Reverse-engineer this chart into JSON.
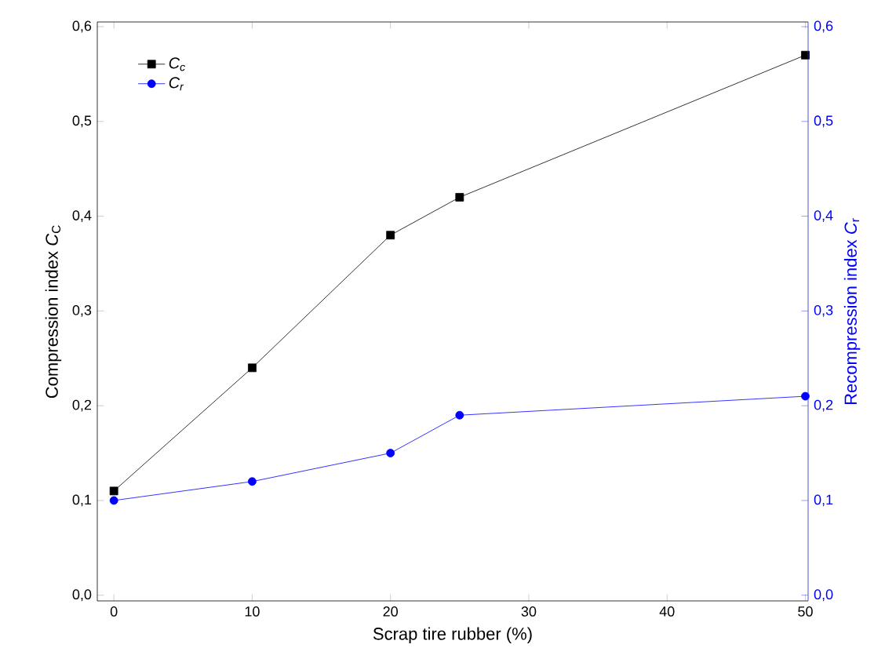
{
  "chart_data": {
    "type": "line",
    "xlabel": "Scrap tire rubber  (%)",
    "ylabel": "Compression index *C*$_{C}$",
    "y2label": "Recompression index *C*$_{r}$",
    "x": [
      0,
      10,
      20,
      25,
      50
    ],
    "series": [
      {
        "name": "C$_{c}$",
        "color": "#000000",
        "marker": "square",
        "values": [
          0.11,
          0.24,
          0.38,
          0.42,
          0.57
        ]
      },
      {
        "name": "C$_{r}$",
        "color": "#0000ff",
        "marker": "circle",
        "axis": "y2",
        "values": [
          0.1,
          0.12,
          0.15,
          0.19,
          0.21
        ]
      }
    ],
    "xlim": [
      -1.2,
      50.2
    ],
    "xticks": [
      0,
      10,
      20,
      30,
      40,
      50
    ],
    "ylim": [
      -0.006,
      0.605
    ],
    "yticks": [
      {
        "value": 0,
        "label": "0,0"
      },
      {
        "value": 0.1,
        "label": "0,1"
      },
      {
        "value": 0.2,
        "label": "0,2"
      },
      {
        "value": 0.3,
        "label": "0,3"
      },
      {
        "value": 0.4,
        "label": "0,4"
      },
      {
        "value": 0.5,
        "label": "0,5"
      },
      {
        "value": 0.6,
        "label": "0,6"
      }
    ],
    "y2lim": [
      -0.006,
      0.605
    ],
    "y2ticks": [
      {
        "value": 0,
        "label": "0,0"
      },
      {
        "value": 0.1,
        "label": "0,1"
      },
      {
        "value": 0.2,
        "label": "0,2"
      },
      {
        "value": 0.3,
        "label": "0,3"
      },
      {
        "value": 0.4,
        "label": "0,4"
      },
      {
        "value": 0.5,
        "label": "0,5"
      },
      {
        "value": 0.6,
        "label": "0,6"
      }
    ],
    "grid": false,
    "legend": "top left",
    "line_style": "solid"
  }
}
